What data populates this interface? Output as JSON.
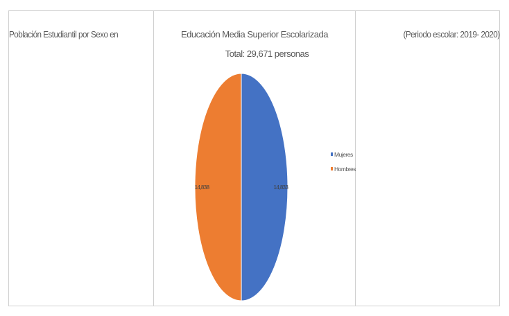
{
  "header": {
    "left_title": "Población Estudiantil por Sexo en",
    "right_title": "(Periodo escolar: 2019- 2020)"
  },
  "chart_data": {
    "type": "pie",
    "title": "Educación Media Superior Escolarizada",
    "subtitle": "Total: 29,671 personas",
    "categories": [
      "Mujeres",
      "Hombres"
    ],
    "values": [
      14833,
      14838
    ],
    "data_labels": [
      "14,833",
      "14,838"
    ],
    "colors": [
      "#4472c4",
      "#ed7d31"
    ],
    "legend_position": "right"
  }
}
